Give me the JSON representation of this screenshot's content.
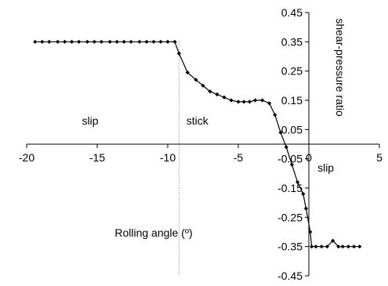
{
  "chart_data": {
    "type": "line",
    "xlabel": "Rolling angle (º)",
    "ylabel": "shear-pressure ratio",
    "xlim": [
      -20,
      5
    ],
    "ylim": [
      -0.45,
      0.45
    ],
    "x_ticks": [
      "-20",
      "-15",
      "-10",
      "-5",
      "0",
      "5"
    ],
    "y_ticks": [
      "0.45",
      "0.35",
      "0.25",
      "0.15",
      "0.05",
      "-0.05",
      "-0.15",
      "-0.25",
      "-0.35",
      "-0.45"
    ],
    "annotations": [
      {
        "text": "slip",
        "x": -15.5,
        "y": 0.08
      },
      {
        "text": "stick",
        "x": -7.9,
        "y": 0.08
      },
      {
        "text": "slip",
        "x": 1.2,
        "y": -0.08
      }
    ],
    "vline": {
      "x": -9.2,
      "y_from": 0.35,
      "y_to": -0.3,
      "style": "dotted"
    },
    "series": [
      {
        "x": [
          -19.4,
          -18.9,
          -18.4,
          -17.8,
          -17.3,
          -16.8,
          -16.3,
          -15.7,
          -15.2,
          -14.7,
          -14.1,
          -13.6,
          -13.1,
          -12.6,
          -12.0,
          -11.5,
          -11.0,
          -10.5,
          -10.0,
          -9.5,
          -9.2,
          -8.6,
          -8.0,
          -7.5,
          -7.0,
          -6.5,
          -6.0,
          -5.5,
          -5.0,
          -4.6,
          -4.2,
          -3.8,
          -3.3,
          -2.8,
          -2.4,
          -2.0,
          -1.6,
          -1.2,
          -0.8,
          -0.4,
          -0.2,
          0.1,
          0.2,
          0.5,
          0.9,
          1.3,
          1.7,
          2.1,
          2.4,
          2.8,
          3.2,
          3.6
        ],
        "y": [
          0.35,
          0.35,
          0.35,
          0.35,
          0.35,
          0.35,
          0.35,
          0.35,
          0.35,
          0.35,
          0.35,
          0.35,
          0.35,
          0.35,
          0.35,
          0.35,
          0.35,
          0.35,
          0.35,
          0.35,
          0.31,
          0.245,
          0.22,
          0.2,
          0.18,
          0.17,
          0.16,
          0.15,
          0.145,
          0.145,
          0.145,
          0.15,
          0.15,
          0.14,
          0.1,
          0.04,
          -0.01,
          -0.07,
          -0.13,
          -0.17,
          -0.22,
          -0.3,
          -0.35,
          -0.35,
          -0.35,
          -0.35,
          -0.33,
          -0.35,
          -0.35,
          -0.35,
          -0.35,
          -0.35
        ]
      }
    ]
  }
}
